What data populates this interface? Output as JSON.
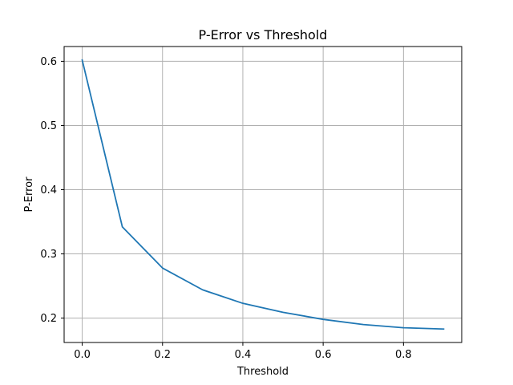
{
  "chart_data": {
    "type": "line",
    "title": "P-Error vs Threshold",
    "xlabel": "Threshold",
    "ylabel": "P-Error",
    "xlim": [
      -0.045,
      0.945
    ],
    "ylim": [
      0.162,
      0.623
    ],
    "xticks": [
      0.0,
      0.2,
      0.4,
      0.6,
      0.8
    ],
    "xtick_labels": [
      "0.0",
      "0.2",
      "0.4",
      "0.6",
      "0.8"
    ],
    "yticks": [
      0.2,
      0.3,
      0.4,
      0.5,
      0.6
    ],
    "ytick_labels": [
      "0.2",
      "0.3",
      "0.4",
      "0.5",
      "0.6"
    ],
    "grid": true,
    "series": [
      {
        "color": "#1f77b4",
        "x": [
          0.0,
          0.1,
          0.2,
          0.3,
          0.4,
          0.5,
          0.6,
          0.7,
          0.8,
          0.9
        ],
        "y": [
          0.602,
          0.342,
          0.278,
          0.244,
          0.223,
          0.209,
          0.198,
          0.19,
          0.185,
          0.183
        ]
      }
    ]
  }
}
